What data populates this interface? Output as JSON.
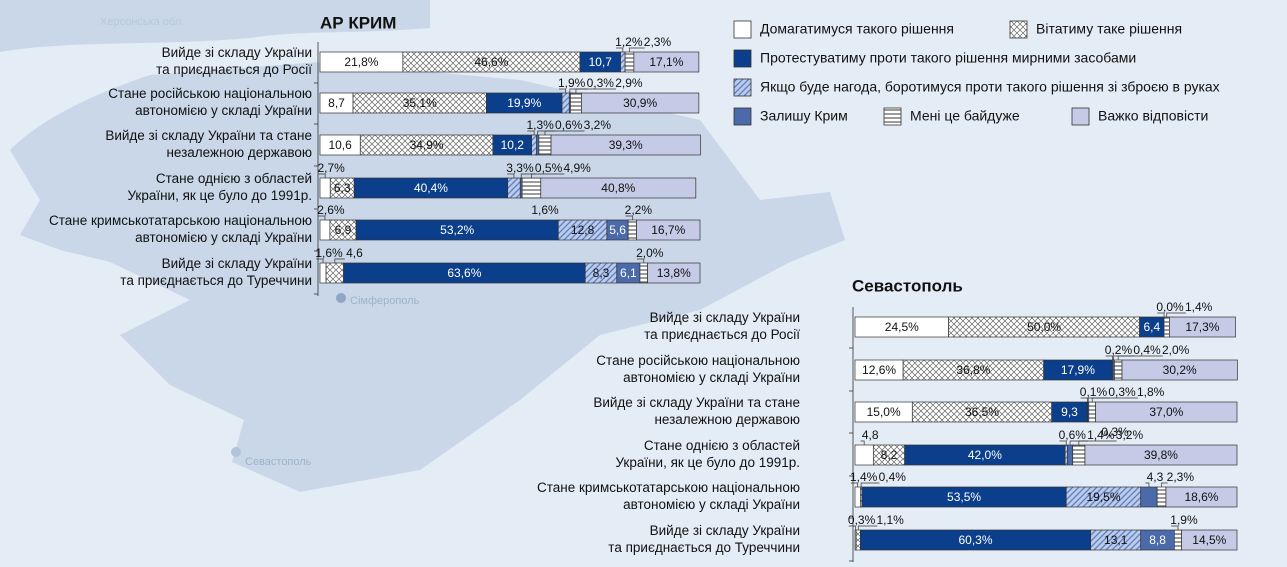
{
  "chart_data": [
    {
      "type": "bar",
      "orientation": "horizontal",
      "stacked": true,
      "title": "АР КРИМ",
      "xlim": [
        0,
        100
      ],
      "categories": [
        "Вийде зі складу України\nта приєднається до Росії",
        "Стане російською національною\nавтономією у складі України",
        "Вийде зі складу України та стане\nнезалежною державою",
        "Стане однією з областей\nУкраїни, як це було до 1991р.",
        "Стане кримськотатарською національною\nавтономією у складі України",
        "Вийде зі складу України\nта приєднається до Туреччини"
      ],
      "series": [
        {
          "name": "Домагатимуся такого рішення",
          "color": "#ffffff",
          "values": [
            21.8,
            8.7,
            10.6,
            2.7,
            2.6,
            1.6
          ],
          "value_labels": [
            "21,8%",
            "8,7",
            "10,6",
            "2,7%",
            "2,6%",
            "1,6%"
          ]
        },
        {
          "name": "Вітатиму таке рішення",
          "color": "#ffffff",
          "pattern": "crosshatch",
          "values": [
            46.6,
            35.1,
            34.9,
            6.3,
            6.9,
            4.6
          ],
          "value_labels": [
            "46,6%",
            "35,1%",
            "34,9%",
            "6,3",
            "6,9",
            "4,6"
          ]
        },
        {
          "name": "Протестуватиму проти такого рішення мирними засобами",
          "color": "#0b3f8c",
          "values": [
            10.7,
            19.9,
            10.2,
            40.4,
            53.2,
            63.6
          ],
          "value_labels": [
            "10,7",
            "19,9%",
            "10,2",
            "40,4%",
            "53,2%",
            "63,6%"
          ]
        },
        {
          "name": "Якщо буде нагода, боротимуся проти такого рішення зі зброєю в руках",
          "color": "#bccbea",
          "pattern": "diagonal",
          "values": [
            1.2,
            1.9,
            1.3,
            3.3,
            12.8,
            8.3
          ],
          "value_labels": [
            "1,2%",
            "1,9%",
            "1,3%",
            "3,3%",
            "12,8",
            "8,3"
          ]
        },
        {
          "name": "Залишу Крим",
          "color": "#4a6aaa",
          "values": [
            null,
            0.3,
            0.6,
            0.5,
            5.6,
            6.1
          ],
          "value_labels": [
            null,
            "0,3%",
            "0,6%",
            "0,5%",
            "5,6",
            "6,1"
          ]
        },
        {
          "name": "Мені це байдуже",
          "color": "#ffffff",
          "pattern": "horizontal",
          "values": [
            2.3,
            2.9,
            3.2,
            4.9,
            2.2,
            2.0
          ],
          "value_labels": [
            "2,3%",
            "2,9%",
            "3,2%",
            "4,9%",
            "2,2%",
            "2,0%"
          ]
        },
        {
          "name": "Важко відповісти",
          "color": "#c5cae6",
          "values": [
            17.1,
            30.9,
            39.3,
            40.8,
            16.7,
            13.8
          ],
          "value_labels": [
            "17,1%",
            "30,9%",
            "39,3%",
            "40,8%",
            "16,7%",
            "13,8%"
          ]
        }
      ],
      "annotations": [
        "1,6%"
      ]
    },
    {
      "type": "bar",
      "orientation": "horizontal",
      "stacked": true,
      "title": "Севастополь",
      "xlim": [
        0,
        100
      ],
      "categories": [
        "Вийде зі складу України\nта приєднається до Росії",
        "Стане російською національною\nавтономією у складі України",
        "Вийде зі складу України та стане\nнезалежною державою",
        "Стане однією з областей\nУкраїни, як це було до 1991р.",
        "Стане кримськотатарською національною\nавтономією у складі України",
        "Вийде зі складу України\nта приєднається до Туреччини"
      ],
      "series": [
        {
          "color": "#ffffff",
          "values": [
            24.5,
            12.6,
            15.0,
            4.8,
            1.4,
            0.3
          ],
          "value_labels": [
            "24,5%",
            "12,6%",
            "15,0%",
            "4,8",
            "1,4%",
            "0,3%"
          ]
        },
        {
          "color": "#ffffff",
          "pattern": "crosshatch",
          "values": [
            50.0,
            36.8,
            36.5,
            8.2,
            0.4,
            1.1
          ],
          "value_labels": [
            "50,0%",
            "36,8%",
            "36,5%",
            "8,2",
            "0,4%",
            "1,1%"
          ]
        },
        {
          "color": "#0b3f8c",
          "values": [
            6.4,
            17.9,
            9.3,
            42.0,
            53.5,
            60.3
          ],
          "value_labels": [
            "6,4",
            "17,9%",
            "9,3",
            "42,0%",
            "53,5%",
            "60,3%"
          ]
        },
        {
          "color": "#bccbea",
          "pattern": "diagonal",
          "values": [
            0.0,
            0.2,
            0.1,
            0.6,
            19.5,
            13.1
          ],
          "value_labels": [
            "0,0%",
            "0,2%",
            "0,1%",
            "0,6%",
            "19,5%",
            "13,1"
          ]
        },
        {
          "color": "#4a6aaa",
          "values": [
            null,
            0.4,
            0.3,
            1.4,
            4.3,
            8.8
          ],
          "value_labels": [
            null,
            "0,4%",
            "0,3%",
            "1,4%",
            "4,3",
            "8,8"
          ]
        },
        {
          "color": "#ffffff",
          "pattern": "horizontal",
          "values": [
            1.4,
            2.0,
            1.8,
            3.2,
            2.3,
            1.9
          ],
          "value_labels": [
            "1,4%",
            "2,0%",
            "1,8%",
            "3,2%",
            "2,3%",
            "1,9%"
          ]
        },
        {
          "color": "#c5cae6",
          "values": [
            17.3,
            30.2,
            37.0,
            39.8,
            18.6,
            14.5
          ],
          "value_labels": [
            "17,3%",
            "30,2%",
            "37,0%",
            "39,8%",
            "18,6%",
            "14,5%"
          ]
        }
      ],
      "annotations": [
        "0,3%"
      ]
    }
  ],
  "map_labels": [
    "Херсонська обл.",
    "Сімферополь",
    "Севастополь"
  ]
}
